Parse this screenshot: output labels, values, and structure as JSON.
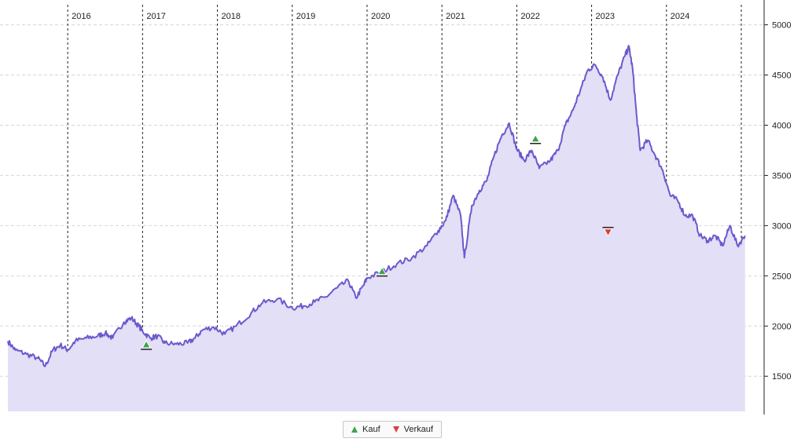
{
  "chart_data": {
    "type": "area",
    "title": "",
    "xlabel": "",
    "ylabel": "",
    "x_range": [
      2015.2,
      2025.2
    ],
    "ylim": [
      1150,
      5200
    ],
    "y_ticks": [
      1500,
      2000,
      2500,
      3000,
      3500,
      4000,
      4500,
      5000
    ],
    "year_labels": [
      {
        "year": 2016,
        "label": "2016"
      },
      {
        "year": 2017,
        "label": "2017"
      },
      {
        "year": 2018,
        "label": "2018"
      },
      {
        "year": 2019,
        "label": "2019"
      },
      {
        "year": 2020,
        "label": "2020"
      },
      {
        "year": 2021,
        "label": "2021"
      },
      {
        "year": 2022,
        "label": "2022"
      },
      {
        "year": 2023,
        "label": "2023"
      },
      {
        "year": 2024,
        "label": "2024"
      },
      {
        "year": 2025,
        "label": ""
      }
    ],
    "grid": true,
    "y_axis_side": "right",
    "legend_position": "bottom-center",
    "colors": {
      "line": "#6a5acd",
      "fill": "#e2dff6",
      "buy": "#3fa34d",
      "sell": "#e23b3b"
    },
    "series": [
      {
        "values": [
          [
            2015.2,
            1850
          ],
          [
            2015.3,
            1760
          ],
          [
            2015.45,
            1720
          ],
          [
            2015.6,
            1680
          ],
          [
            2015.7,
            1600
          ],
          [
            2015.8,
            1760
          ],
          [
            2015.9,
            1810
          ],
          [
            2016.0,
            1760
          ],
          [
            2016.1,
            1850
          ],
          [
            2016.25,
            1880
          ],
          [
            2016.4,
            1900
          ],
          [
            2016.5,
            1930
          ],
          [
            2016.6,
            1880
          ],
          [
            2016.75,
            2040
          ],
          [
            2016.85,
            2080
          ],
          [
            2016.95,
            2000
          ],
          [
            2017.0,
            1950
          ],
          [
            2017.1,
            1880
          ],
          [
            2017.2,
            1900
          ],
          [
            2017.3,
            1830
          ],
          [
            2017.45,
            1820
          ],
          [
            2017.6,
            1830
          ],
          [
            2017.7,
            1880
          ],
          [
            2017.8,
            1960
          ],
          [
            2017.95,
            1990
          ],
          [
            2018.1,
            1920
          ],
          [
            2018.25,
            2000
          ],
          [
            2018.45,
            2130
          ],
          [
            2018.6,
            2230
          ],
          [
            2018.8,
            2270
          ],
          [
            2019.0,
            2180
          ],
          [
            2019.15,
            2200
          ],
          [
            2019.3,
            2240
          ],
          [
            2019.45,
            2290
          ],
          [
            2019.6,
            2380
          ],
          [
            2019.75,
            2450
          ],
          [
            2019.85,
            2280
          ],
          [
            2019.95,
            2400
          ],
          [
            2020.0,
            2480
          ],
          [
            2020.2,
            2540
          ],
          [
            2020.4,
            2620
          ],
          [
            2020.6,
            2680
          ],
          [
            2020.8,
            2800
          ],
          [
            2020.95,
            2950
          ],
          [
            2021.05,
            3050
          ],
          [
            2021.15,
            3300
          ],
          [
            2021.25,
            3100
          ],
          [
            2021.3,
            2680
          ],
          [
            2021.4,
            3200
          ],
          [
            2021.5,
            3350
          ],
          [
            2021.6,
            3450
          ],
          [
            2021.7,
            3700
          ],
          [
            2021.8,
            3900
          ],
          [
            2021.9,
            4020
          ],
          [
            2022.0,
            3760
          ],
          [
            2022.1,
            3650
          ],
          [
            2022.2,
            3750
          ],
          [
            2022.3,
            3570
          ],
          [
            2022.45,
            3650
          ],
          [
            2022.55,
            3750
          ],
          [
            2022.65,
            4000
          ],
          [
            2022.75,
            4150
          ],
          [
            2022.85,
            4350
          ],
          [
            2022.95,
            4550
          ],
          [
            2023.05,
            4600
          ],
          [
            2023.15,
            4480
          ],
          [
            2023.25,
            4250
          ],
          [
            2023.35,
            4500
          ],
          [
            2023.45,
            4700
          ],
          [
            2023.5,
            4780
          ],
          [
            2023.55,
            4550
          ],
          [
            2023.6,
            4100
          ],
          [
            2023.65,
            3750
          ],
          [
            2023.75,
            3850
          ],
          [
            2023.85,
            3700
          ],
          [
            2023.95,
            3550
          ],
          [
            2024.05,
            3300
          ],
          [
            2024.15,
            3250
          ],
          [
            2024.25,
            3100
          ],
          [
            2024.35,
            3100
          ],
          [
            2024.45,
            2900
          ],
          [
            2024.55,
            2850
          ],
          [
            2024.65,
            2900
          ],
          [
            2024.75,
            2800
          ],
          [
            2024.85,
            3000
          ],
          [
            2024.95,
            2800
          ],
          [
            2025.05,
            2900
          ]
        ]
      }
    ]
  },
  "legend": {
    "buy_label": "Kauf",
    "sell_label": "Verkauf"
  }
}
